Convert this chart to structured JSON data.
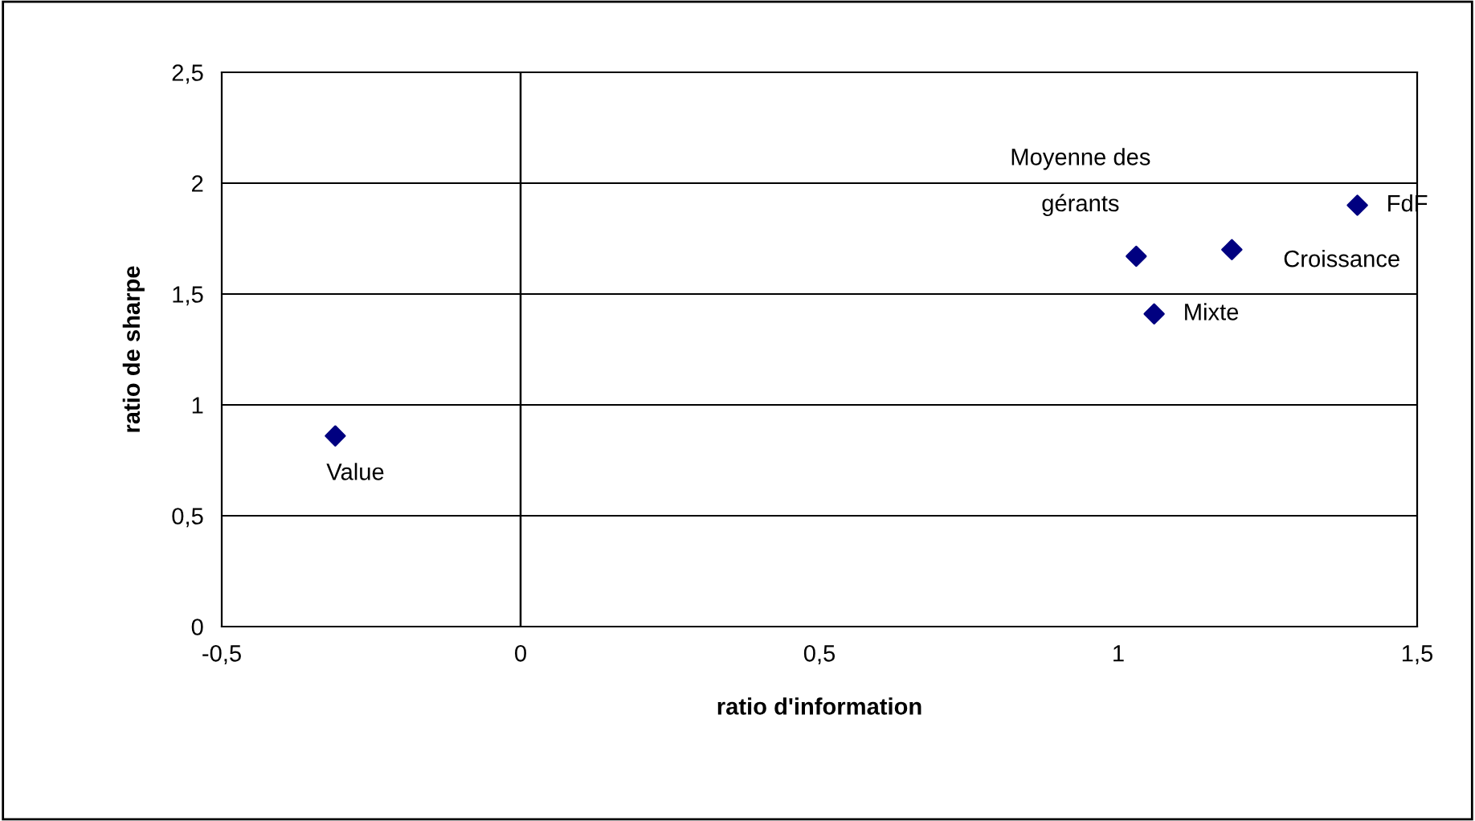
{
  "chart_data": {
    "type": "scatter",
    "xlabel": "ratio d'information",
    "ylabel": "ratio de sharpe",
    "x": [
      -0.31,
      1.03,
      1.19,
      1.06,
      1.4
    ],
    "series": [
      {
        "color": "#000080",
        "values": [
          0.86,
          1.67,
          1.7,
          1.41,
          1.9
        ]
      }
    ],
    "marker": "diamond",
    "grid": "y",
    "legend": false,
    "xlim": [
      -0.5,
      1.5
    ],
    "xticks": [
      {
        "value": -0.5,
        "label": "-0,5"
      },
      0,
      {
        "value": 0.5,
        "label": "0,5"
      },
      1,
      {
        "value": 1.5,
        "label": "1,5"
      }
    ],
    "ylim": [
      0,
      2.5
    ],
    "yticks": [
      0,
      {
        "value": 0.5,
        "label": "0,5"
      },
      1,
      {
        "value": 1.5,
        "label": "1,5"
      },
      2,
      {
        "value": 2.5,
        "label": "2,5"
      }
    ],
    "ref_lines": [
      {
        "axis": "x",
        "value": 0,
        "color": "#000000"
      }
    ],
    "annotations": [
      {
        "text": "Value",
        "x": -0.31,
        "y": 0.86
      },
      {
        "text": "Moyenne des\ngérants",
        "x": 1.03,
        "y": 1.67
      },
      {
        "text": "Croissance",
        "x": 1.19,
        "y": 1.7
      },
      {
        "text": "Mixte",
        "x": 1.06,
        "y": 1.41
      },
      {
        "text": "FdF",
        "x": 1.4,
        "y": 1.9
      }
    ]
  }
}
